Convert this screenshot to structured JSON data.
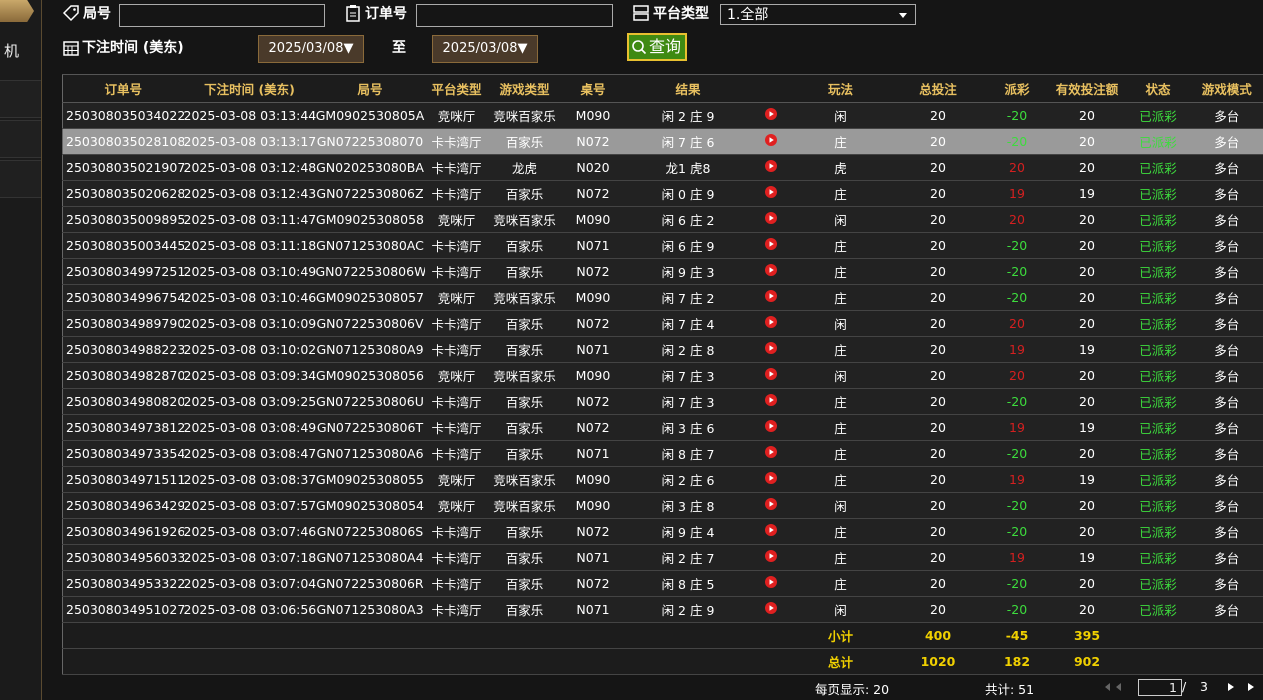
{
  "sidebar": {
    "item": "机"
  },
  "filters": {
    "round_label": "局号",
    "order_label": "订单号",
    "platform_label": "平台类型",
    "platform_value": "1.全部",
    "time_label": "下注时间 (美东)",
    "date_from": "2025/03/08▼",
    "to_label": "至",
    "date_to": "2025/03/08▼",
    "search_button": "查询"
  },
  "table": {
    "headers": [
      "订单号",
      "下注时间 (美东)",
      "局号",
      "平台类型",
      "游戏类型",
      "桌号",
      "结果",
      "玩法",
      "总投注",
      "派彩",
      "有效投注额",
      "状态",
      "游戏模式"
    ],
    "highlighted_row": 1,
    "rows": [
      [
        "250308035034022",
        "2025-03-08 03:13:44",
        "GM0902530805A",
        "竞咪厅",
        "竞咪百家乐",
        "M090",
        "闲 2 庄 9",
        "闲",
        20,
        -20,
        20,
        "已派彩",
        "多台"
      ],
      [
        "250308035028108",
        "2025-03-08 03:13:17",
        "GN07225308070",
        "卡卡湾厅",
        "百家乐",
        "N072",
        "闲 7 庄 6",
        "庄",
        20,
        -20,
        20,
        "已派彩",
        "多台"
      ],
      [
        "250308035021907",
        "2025-03-08 03:12:48",
        "GN020253080BA",
        "卡卡湾厅",
        "龙虎",
        "N020",
        "龙1 虎8",
        "虎",
        20,
        20,
        20,
        "已派彩",
        "多台"
      ],
      [
        "250308035020628",
        "2025-03-08 03:12:43",
        "GN0722530806Z",
        "卡卡湾厅",
        "百家乐",
        "N072",
        "闲 0 庄 9",
        "庄",
        20,
        19,
        19,
        "已派彩",
        "多台"
      ],
      [
        "250308035009895",
        "2025-03-08 03:11:47",
        "GM09025308058",
        "竞咪厅",
        "竞咪百家乐",
        "M090",
        "闲 6 庄 2",
        "闲",
        20,
        20,
        20,
        "已派彩",
        "多台"
      ],
      [
        "250308035003445",
        "2025-03-08 03:11:18",
        "GN071253080AC",
        "卡卡湾厅",
        "百家乐",
        "N071",
        "闲 6 庄 9",
        "庄",
        20,
        -20,
        20,
        "已派彩",
        "多台"
      ],
      [
        "250308034997251",
        "2025-03-08 03:10:49",
        "GN0722530806W",
        "卡卡湾厅",
        "百家乐",
        "N072",
        "闲 9 庄 3",
        "庄",
        20,
        -20,
        20,
        "已派彩",
        "多台"
      ],
      [
        "250308034996754",
        "2025-03-08 03:10:46",
        "GM09025308057",
        "竞咪厅",
        "竞咪百家乐",
        "M090",
        "闲 7 庄 2",
        "庄",
        20,
        -20,
        20,
        "已派彩",
        "多台"
      ],
      [
        "250308034989790",
        "2025-03-08 03:10:09",
        "GN0722530806V",
        "卡卡湾厅",
        "百家乐",
        "N072",
        "闲 7 庄 4",
        "闲",
        20,
        20,
        20,
        "已派彩",
        "多台"
      ],
      [
        "250308034988223",
        "2025-03-08 03:10:02",
        "GN071253080A9",
        "卡卡湾厅",
        "百家乐",
        "N071",
        "闲 2 庄 8",
        "庄",
        20,
        19,
        19,
        "已派彩",
        "多台"
      ],
      [
        "250308034982870",
        "2025-03-08 03:09:34",
        "GM09025308056",
        "竞咪厅",
        "竞咪百家乐",
        "M090",
        "闲 7 庄 3",
        "闲",
        20,
        20,
        20,
        "已派彩",
        "多台"
      ],
      [
        "250308034980820",
        "2025-03-08 03:09:25",
        "GN0722530806U",
        "卡卡湾厅",
        "百家乐",
        "N072",
        "闲 7 庄 3",
        "庄",
        20,
        -20,
        20,
        "已派彩",
        "多台"
      ],
      [
        "250308034973812",
        "2025-03-08 03:08:49",
        "GN0722530806T",
        "卡卡湾厅",
        "百家乐",
        "N072",
        "闲 3 庄 6",
        "庄",
        20,
        19,
        19,
        "已派彩",
        "多台"
      ],
      [
        "250308034973354",
        "2025-03-08 03:08:47",
        "GN071253080A6",
        "卡卡湾厅",
        "百家乐",
        "N071",
        "闲 8 庄 7",
        "庄",
        20,
        -20,
        20,
        "已派彩",
        "多台"
      ],
      [
        "250308034971511",
        "2025-03-08 03:08:37",
        "GM09025308055",
        "竞咪厅",
        "竞咪百家乐",
        "M090",
        "闲 2 庄 6",
        "庄",
        20,
        19,
        19,
        "已派彩",
        "多台"
      ],
      [
        "250308034963429",
        "2025-03-08 03:07:57",
        "GM09025308054",
        "竞咪厅",
        "竞咪百家乐",
        "M090",
        "闲 3 庄 8",
        "闲",
        20,
        -20,
        20,
        "已派彩",
        "多台"
      ],
      [
        "250308034961926",
        "2025-03-08 03:07:46",
        "GN0722530806S",
        "卡卡湾厅",
        "百家乐",
        "N072",
        "闲 9 庄 4",
        "庄",
        20,
        -20,
        20,
        "已派彩",
        "多台"
      ],
      [
        "250308034956033",
        "2025-03-08 03:07:18",
        "GN071253080A4",
        "卡卡湾厅",
        "百家乐",
        "N071",
        "闲 2 庄 7",
        "庄",
        20,
        19,
        19,
        "已派彩",
        "多台"
      ],
      [
        "250308034953322",
        "2025-03-08 03:07:04",
        "GN0722530806R",
        "卡卡湾厅",
        "百家乐",
        "N072",
        "闲 8 庄 5",
        "庄",
        20,
        -20,
        20,
        "已派彩",
        "多台"
      ],
      [
        "250308034951027",
        "2025-03-08 03:06:56",
        "GN071253080A3",
        "卡卡湾厅",
        "百家乐",
        "N071",
        "闲 2 庄 9",
        "闲",
        20,
        -20,
        20,
        "已派彩",
        "多台"
      ]
    ],
    "summary": [
      {
        "label": "小计",
        "bet": 400,
        "payout": -45,
        "valid": 395
      },
      {
        "label": "总计",
        "bet": 1020,
        "payout": 182,
        "valid": 902
      }
    ]
  },
  "pagination": {
    "per_page": "每页显示: 20",
    "total": "共计: 51",
    "page": 1,
    "separator": "/",
    "pages": 3
  }
}
